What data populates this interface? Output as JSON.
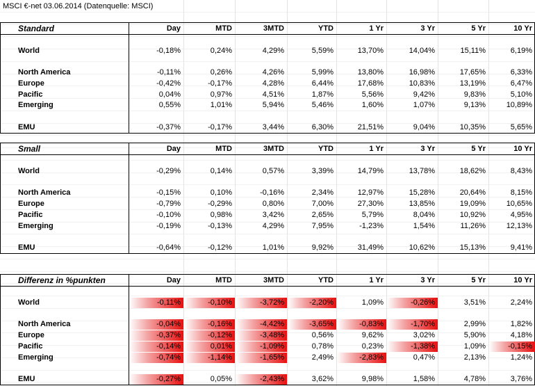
{
  "title": "MSCI €-net 03.06.2014 (Datenquelle: MSCI)",
  "sections": [
    {
      "label": "Standard",
      "columns": [
        "Day",
        "MTD",
        "3MTD",
        "YTD",
        "1 Yr",
        "3 Yr",
        "5 Yr",
        "10 Yr"
      ],
      "rows": [
        {
          "name": "World",
          "values": [
            "-0,18%",
            "0,24%",
            "4,29%",
            "5,59%",
            "13,70%",
            "14,04%",
            "15,11%",
            "6,19%"
          ]
        },
        {
          "name": "North America",
          "values": [
            "-0,11%",
            "0,26%",
            "4,26%",
            "5,99%",
            "13,80%",
            "16,98%",
            "17,65%",
            "6,33%"
          ]
        },
        {
          "name": "Europe",
          "values": [
            "-0,42%",
            "-0,17%",
            "4,28%",
            "6,44%",
            "17,68%",
            "10,83%",
            "13,19%",
            "6,47%"
          ]
        },
        {
          "name": "Pacific",
          "values": [
            "0,04%",
            "0,97%",
            "4,51%",
            "1,87%",
            "5,56%",
            "9,42%",
            "9,83%",
            "5,10%"
          ]
        },
        {
          "name": "Emerging",
          "values": [
            "0,55%",
            "1,01%",
            "5,94%",
            "5,46%",
            "1,60%",
            "1,07%",
            "9,13%",
            "10,89%"
          ]
        },
        {
          "name": "EMU",
          "values": [
            "-0,37%",
            "-0,17%",
            "3,44%",
            "6,30%",
            "21,51%",
            "9,04%",
            "10,35%",
            "5,65%"
          ]
        }
      ]
    },
    {
      "label": "Small",
      "columns": [
        "Day",
        "MTD",
        "3MTD",
        "YTD",
        "1 Yr",
        "3 Yr",
        "5 Yr",
        "10 Yr"
      ],
      "rows": [
        {
          "name": "World",
          "values": [
            "-0,29%",
            "0,14%",
            "0,57%",
            "3,39%",
            "14,79%",
            "13,78%",
            "18,62%",
            "8,43%"
          ]
        },
        {
          "name": "North America",
          "values": [
            "-0,15%",
            "0,10%",
            "-0,16%",
            "2,34%",
            "12,97%",
            "15,28%",
            "20,64%",
            "8,15%"
          ]
        },
        {
          "name": "Europe",
          "values": [
            "-0,79%",
            "-0,29%",
            "0,80%",
            "7,00%",
            "27,30%",
            "13,85%",
            "19,09%",
            "10,65%"
          ]
        },
        {
          "name": "Pacific",
          "values": [
            "-0,10%",
            "0,98%",
            "3,42%",
            "2,65%",
            "5,79%",
            "8,04%",
            "10,92%",
            "4,95%"
          ]
        },
        {
          "name": "Emerging",
          "values": [
            "-0,19%",
            "-0,13%",
            "4,29%",
            "7,95%",
            "-1,23%",
            "1,54%",
            "11,26%",
            "12,13%"
          ]
        },
        {
          "name": "EMU",
          "values": [
            "-0,64%",
            "-0,12%",
            "1,01%",
            "9,92%",
            "31,49%",
            "10,62%",
            "15,13%",
            "9,41%"
          ]
        }
      ]
    },
    {
      "label": "Differenz in %punkten",
      "columns": [
        "Day",
        "MTD",
        "3MTD",
        "YTD",
        "1 Yr",
        "3 Yr",
        "5 Yr",
        "10 Yr"
      ],
      "rows": [
        {
          "name": "World",
          "values": [
            "-0,11%",
            "-0,10%",
            "-3,72%",
            "-2,20%",
            "1,09%",
            "-0,26%",
            "3,51%",
            "2,24%"
          ],
          "highlighted": [
            true,
            true,
            true,
            true,
            false,
            true,
            false,
            false
          ]
        },
        {
          "name": "North America",
          "values": [
            "-0,04%",
            "-0,16%",
            "-4,42%",
            "-3,65%",
            "-0,83%",
            "-1,70%",
            "2,99%",
            "1,82%"
          ],
          "highlighted": [
            true,
            true,
            true,
            true,
            true,
            true,
            false,
            false
          ]
        },
        {
          "name": "Europe",
          "values": [
            "-0,37%",
            "-0,12%",
            "-3,48%",
            "0,56%",
            "9,62%",
            "3,02%",
            "5,90%",
            "4,18%"
          ],
          "highlighted": [
            true,
            true,
            true,
            false,
            false,
            false,
            false,
            false
          ]
        },
        {
          "name": "Pacific",
          "values": [
            "-0,14%",
            "0,01%",
            "-1,09%",
            "0,78%",
            "0,23%",
            "-1,38%",
            "1,09%",
            "-0,15%"
          ],
          "highlighted": [
            true,
            true,
            true,
            false,
            false,
            true,
            false,
            true
          ]
        },
        {
          "name": "Emerging",
          "values": [
            "-0,74%",
            "-1,14%",
            "-1,65%",
            "2,49%",
            "-2,83%",
            "0,47%",
            "2,13%",
            "1,24%"
          ],
          "highlighted": [
            true,
            true,
            true,
            false,
            true,
            false,
            false,
            false
          ]
        },
        {
          "name": "EMU",
          "values": [
            "-0,27%",
            "0,05%",
            "-2,43%",
            "3,62%",
            "9,98%",
            "1,58%",
            "4,78%",
            "3,76%"
          ],
          "highlighted": [
            true,
            false,
            true,
            false,
            false,
            false,
            false,
            false
          ]
        }
      ]
    }
  ]
}
